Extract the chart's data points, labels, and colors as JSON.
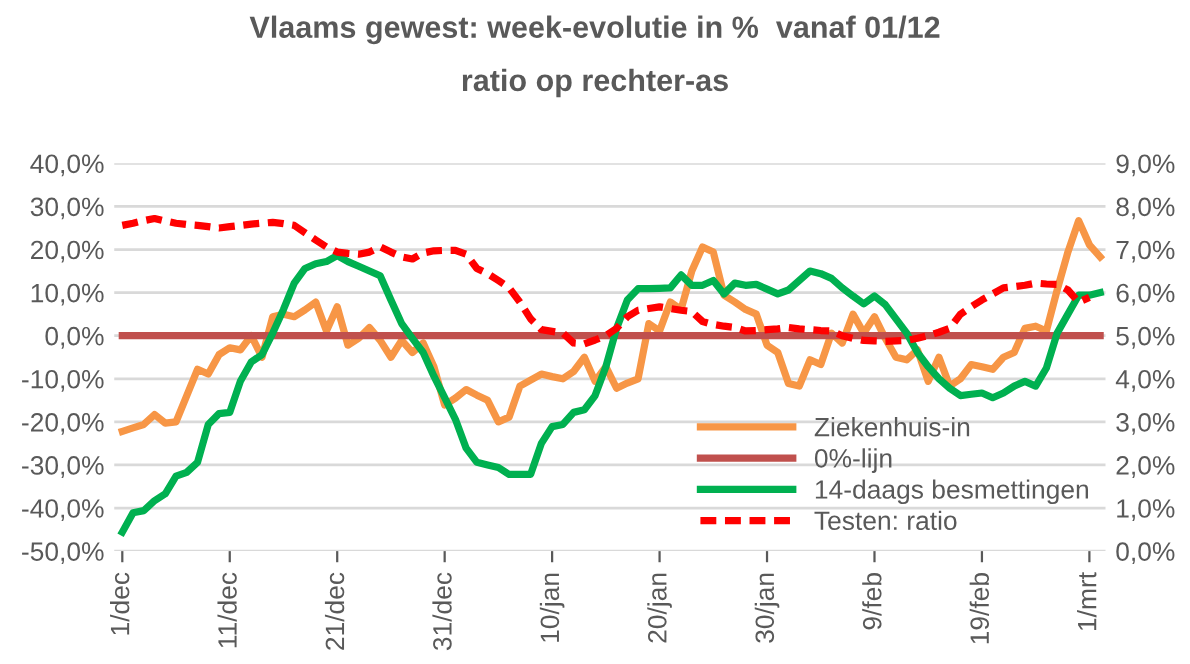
{
  "chart_data": {
    "type": "line",
    "title": "Vlaams gewest: week-evolutie in %  vanaf 01/12",
    "subtitle": "ratio op rechter-as",
    "categories": [
      "1/dec",
      null,
      null,
      null,
      null,
      null,
      null,
      null,
      null,
      null,
      "11/dec",
      null,
      null,
      null,
      null,
      null,
      null,
      null,
      null,
      null,
      "21/dec",
      null,
      null,
      null,
      null,
      null,
      null,
      null,
      null,
      null,
      "31/dec",
      null,
      null,
      null,
      null,
      null,
      null,
      null,
      null,
      null,
      "10/jan",
      null,
      null,
      null,
      null,
      null,
      null,
      null,
      null,
      null,
      "20/jan",
      null,
      null,
      null,
      null,
      null,
      null,
      null,
      null,
      null,
      "30/jan",
      null,
      null,
      null,
      null,
      null,
      null,
      null,
      null,
      null,
      "9/feb",
      null,
      null,
      null,
      null,
      null,
      null,
      null,
      null,
      null,
      "19/feb",
      null,
      null,
      null,
      null,
      null,
      null,
      null,
      null,
      null,
      "1/mrt",
      null
    ],
    "ylim": [
      -50,
      40
    ],
    "yticks": [
      {
        "value": -50,
        "label": "-50,0%"
      },
      {
        "value": -40,
        "label": "-40,0%"
      },
      {
        "value": -30,
        "label": "-30,0%"
      },
      {
        "value": -20,
        "label": "-20,0%"
      },
      {
        "value": -10,
        "label": "-10,0%"
      },
      {
        "value": 0,
        "label": "0,0%"
      },
      {
        "value": 10,
        "label": "10,0%"
      },
      {
        "value": 20,
        "label": "20,0%"
      },
      {
        "value": 30,
        "label": "30,0%"
      },
      {
        "value": 40,
        "label": "40,0%"
      }
    ],
    "y2lim": [
      0,
      9
    ],
    "y2ticks": [
      {
        "value": 0,
        "label": "0,0%"
      },
      {
        "value": 1,
        "label": "1,0%"
      },
      {
        "value": 2,
        "label": "2,0%"
      },
      {
        "value": 3,
        "label": "3,0%"
      },
      {
        "value": 4,
        "label": "4,0%"
      },
      {
        "value": 5,
        "label": "5,0%"
      },
      {
        "value": 6,
        "label": "6,0%"
      },
      {
        "value": 7,
        "label": "7,0%"
      },
      {
        "value": 8,
        "label": "8,0%"
      },
      {
        "value": 9,
        "label": "9,0%"
      }
    ],
    "grid": "y",
    "legend": "bottom right",
    "series": [
      {
        "name": "Ziekenhuis-in",
        "color": "#f79646",
        "line_style": "solid",
        "values": [
          -22.2,
          -21.4,
          -20.6,
          -18.3,
          -20.3,
          -20,
          -13.9,
          -7.8,
          -8.9,
          -4.4,
          -2.8,
          -3.3,
          0,
          -5,
          4.4,
          5,
          4.4,
          6,
          7.8,
          1.1,
          6.7,
          -2.2,
          -0.6,
          1.9,
          -1.1,
          -5,
          -1.1,
          -3.9,
          -1.7,
          -7.2,
          -16.1,
          -14.5,
          -12.5,
          -13.8,
          -15,
          -20,
          -18.9,
          -11.7,
          -10.3,
          -8.9,
          -9.5,
          -10,
          -8.3,
          -5,
          -10.6,
          -7.2,
          -12.2,
          -11,
          -10,
          2.8,
          1.1,
          7.8,
          6.1,
          15,
          20.6,
          19.4,
          9.4,
          7.8,
          6.1,
          5,
          -2.2,
          -3.9,
          -11.1,
          -11.7,
          -5.6,
          -6.7,
          0.6,
          -1.7,
          5,
          0.6,
          4.4,
          -0.6,
          -5,
          -5.6,
          -3.3,
          -10.6,
          -5,
          -11.7,
          -10,
          -6.7,
          -7.2,
          -7.8,
          -5,
          -3.9,
          1.7,
          2.2,
          1.1,
          10.6,
          19.4,
          26.7,
          21.1,
          18.3
        ]
      },
      {
        "name": "0%-lijn",
        "color": "#c0504d",
        "line_style": "solid",
        "values": [
          0,
          0,
          0,
          0,
          0,
          0,
          0,
          0,
          0,
          0,
          0,
          0,
          0,
          0,
          0,
          0,
          0,
          0,
          0,
          0,
          0,
          0,
          0,
          0,
          0,
          0,
          0,
          0,
          0,
          0,
          0,
          0,
          0,
          0,
          0,
          0,
          0,
          0,
          0,
          0,
          0,
          0,
          0,
          0,
          0,
          0,
          0,
          0,
          0,
          0,
          0,
          0,
          0,
          0,
          0,
          0,
          0,
          0,
          0,
          0,
          0,
          0,
          0,
          0,
          0,
          0,
          0,
          0,
          0,
          0,
          0,
          0,
          0,
          0,
          0,
          0,
          0,
          0,
          0,
          0,
          0,
          0,
          0,
          0,
          0,
          0,
          0,
          0,
          0,
          0,
          0,
          0
        ]
      },
      {
        "name": "14-daags besmettingen",
        "color": "#00b050",
        "line_style": "solid",
        "values": [
          -45.6,
          -41.1,
          -40.6,
          -38.3,
          -36.7,
          -32.6,
          -31.7,
          -29.4,
          -20.6,
          -18.1,
          -17.8,
          -10.5,
          -6.1,
          -4.4,
          0.6,
          6.1,
          12.2,
          15.6,
          16.7,
          17.2,
          18.6,
          17.2,
          16.1,
          15,
          13.9,
          8.3,
          2.8,
          -0.6,
          -3.9,
          -9.4,
          -14.4,
          -19.4,
          -26.1,
          -29.4,
          -30,
          -30.6,
          -32.2,
          -32.2,
          -32.2,
          -25,
          -21.1,
          -20.6,
          -17.8,
          -17.2,
          -13.9,
          -7.2,
          1.7,
          8.3,
          10.9,
          10.9,
          11,
          11.1,
          14.1,
          11.7,
          11.7,
          12.8,
          9.7,
          12.2,
          11.7,
          11.9,
          10.8,
          9.7,
          10.6,
          12.8,
          15,
          14.4,
          13.3,
          11.1,
          9.2,
          7.4,
          9.2,
          7.2,
          3.9,
          0.6,
          -3.9,
          -7.2,
          -10,
          -12.2,
          -13.9,
          -13.6,
          -13.3,
          -14.4,
          -13.3,
          -11.7,
          -10.6,
          -11.7,
          -7.5,
          0.6,
          5,
          9.4,
          9.4,
          10
        ]
      },
      {
        "name": "Testen: ratio",
        "color": "#ff0000",
        "line_style": "dashed",
        "axis": "y2",
        "values": [
          7.56,
          7.61,
          7.67,
          7.72,
          7.66,
          7.61,
          7.58,
          7.56,
          7.53,
          7.5,
          7.53,
          7.56,
          7.59,
          7.61,
          7.63,
          7.6,
          7.56,
          7.39,
          7.22,
          7.06,
          6.94,
          6.91,
          6.89,
          6.94,
          7.06,
          6.94,
          6.83,
          6.78,
          6.92,
          6.97,
          6.98,
          6.98,
          6.89,
          6.56,
          6.44,
          6.28,
          6.11,
          5.78,
          5.39,
          5.14,
          5.1,
          5.06,
          4.83,
          4.81,
          4.9,
          5.0,
          5.17,
          5.44,
          5.59,
          5.63,
          5.67,
          5.63,
          5.59,
          5.56,
          5.33,
          5.26,
          5.22,
          5.19,
          5.11,
          5.12,
          5.14,
          5.16,
          5.19,
          5.16,
          5.14,
          5.12,
          5.11,
          5.0,
          4.94,
          4.89,
          4.88,
          4.87,
          4.88,
          4.89,
          4.94,
          5.0,
          5.08,
          5.17,
          5.5,
          5.67,
          5.83,
          5.97,
          6.11,
          6.14,
          6.17,
          6.22,
          6.2,
          6.19,
          6.06,
          5.78,
          5.89,
          null
        ]
      }
    ]
  }
}
